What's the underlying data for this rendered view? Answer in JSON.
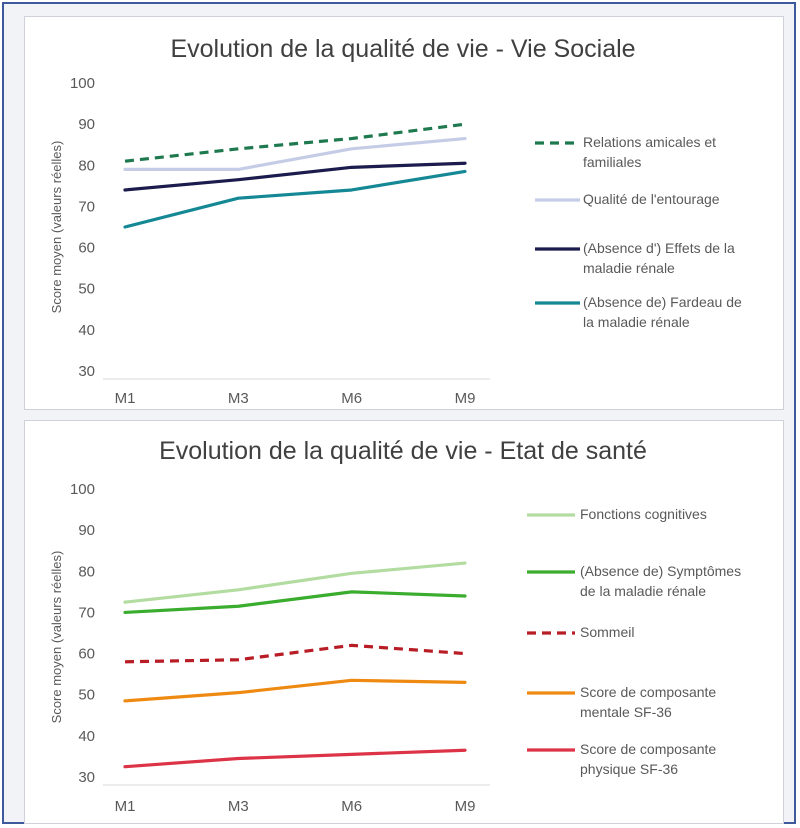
{
  "chart_data": [
    {
      "type": "line",
      "title": "Evolution de la qualité de vie - Vie Sociale",
      "xlabel": "",
      "ylabel": "Score moyen (valeurs réelles)",
      "categories": [
        "M1",
        "M3",
        "M6",
        "M9"
      ],
      "yticks": [
        30,
        40,
        50,
        60,
        70,
        80,
        90,
        100
      ],
      "ylim": [
        30,
        100
      ],
      "grid": false,
      "legend_position": "right",
      "series": [
        {
          "name": "Relations amicales et familiales",
          "legend_lines": [
            "Relations amicales et",
            "familiales"
          ],
          "values": [
            81,
            84,
            86.5,
            90
          ],
          "color": "#1e7a4e",
          "dash": true
        },
        {
          "name": "Qualité de l'entourage",
          "legend_lines": [
            "Qualité de l'entourage"
          ],
          "values": [
            79,
            79,
            84,
            86.5
          ],
          "color": "#c5cde6",
          "dash": false
        },
        {
          "name": "(Absence d') Effets de la maladie rénale",
          "legend_lines": [
            "(Absence d') Effets de la",
            "maladie rénale"
          ],
          "values": [
            74,
            76.5,
            79.5,
            80.5
          ],
          "color": "#1b1b4d",
          "dash": false
        },
        {
          "name": "(Absence de) Fardeau de la maladie rénale",
          "legend_lines": [
            "(Absence de) Fardeau de",
            "la maladie rénale"
          ],
          "values": [
            65,
            72,
            74,
            78.5
          ],
          "color": "#158895",
          "dash": false
        }
      ]
    },
    {
      "type": "line",
      "title": "Evolution de la qualité de vie - Etat de santé",
      "xlabel": "",
      "ylabel": "Score moyen (valeurs réelles)",
      "categories": [
        "M1",
        "M3",
        "M6",
        "M9"
      ],
      "yticks": [
        30,
        40,
        50,
        60,
        70,
        80,
        90,
        100
      ],
      "ylim": [
        30,
        100
      ],
      "grid": false,
      "legend_position": "right",
      "series": [
        {
          "name": "Fonctions cognitives",
          "legend_lines": [
            "Fonctions cognitives"
          ],
          "values": [
            72.5,
            75.5,
            79.5,
            82
          ],
          "color": "#b3dca0",
          "dash": false
        },
        {
          "name": "(Absence de) Symptômes de la maladie rénale",
          "legend_lines": [
            "(Absence de) Symptômes",
            "de la maladie rénale"
          ],
          "values": [
            70,
            71.5,
            75,
            74
          ],
          "color": "#3aac2e",
          "dash": false
        },
        {
          "name": "Sommeil",
          "legend_lines": [
            "Sommeil"
          ],
          "values": [
            58,
            58.5,
            62,
            60
          ],
          "color": "#b81c25",
          "dash": true
        },
        {
          "name": "Score de composante mentale SF-36",
          "legend_lines": [
            "Score de composante",
            "mentale SF-36"
          ],
          "values": [
            48.5,
            50.5,
            53.5,
            53
          ],
          "color": "#ee8a12",
          "dash": false
        },
        {
          "name": "Score de composante physique SF-36",
          "legend_lines": [
            "Score de composante",
            "physique SF-36"
          ],
          "values": [
            32.5,
            34.5,
            35.5,
            36.5
          ],
          "color": "#dd3346",
          "dash": false
        }
      ]
    }
  ]
}
